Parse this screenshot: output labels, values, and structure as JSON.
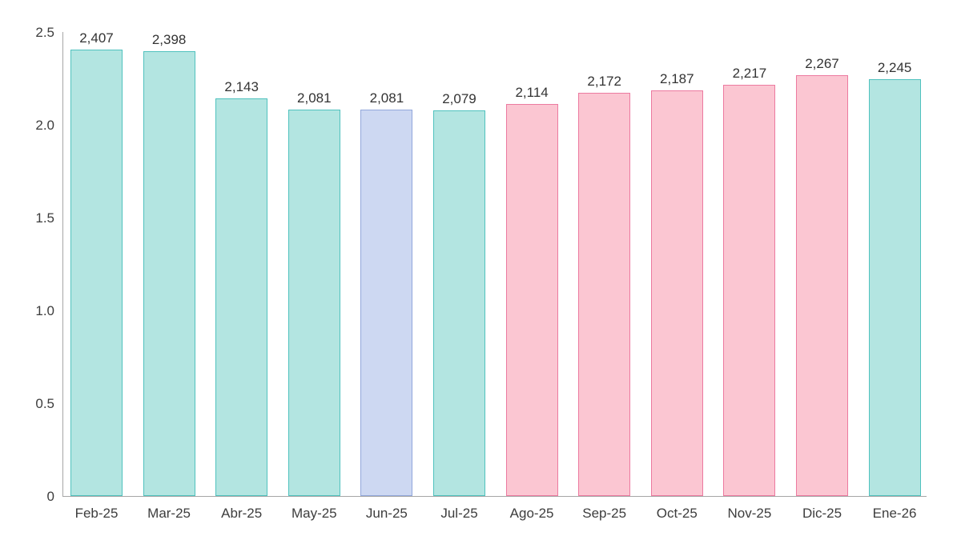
{
  "chart_data": {
    "type": "bar",
    "title": "",
    "xlabel": "",
    "ylabel": "",
    "categories": [
      "Feb-25",
      "Mar-25",
      "Abr-25",
      "May-25",
      "Jun-25",
      "Jul-25",
      "Ago-25",
      "Sep-25",
      "Oct-25",
      "Nov-25",
      "Dic-25",
      "Ene-26"
    ],
    "values": [
      2.407,
      2.398,
      2.143,
      2.081,
      2.081,
      2.079,
      2.114,
      2.172,
      2.187,
      2.217,
      2.267,
      2.245
    ],
    "data_labels": [
      "2,407",
      "2,398",
      "2,143",
      "2,081",
      "2,081",
      "2,079",
      "2,114",
      "2,172",
      "2,187",
      "2,217",
      "2,267",
      "2,245"
    ],
    "ylim": [
      0,
      2.5
    ],
    "yticks": [
      0,
      0.5,
      1.0,
      1.5,
      2.0,
      2.5
    ],
    "ytick_labels": [
      "0",
      "0.5",
      "1.0",
      "1.5",
      "2.0",
      "2.5"
    ],
    "grid": false,
    "legend": false,
    "bar_groups": [
      "teal",
      "teal",
      "teal",
      "teal",
      "blue",
      "teal",
      "pink",
      "pink",
      "pink",
      "pink",
      "pink",
      "teal"
    ],
    "group_colors": {
      "teal": {
        "fill": "#B3E5E1",
        "border": "#50C2BE"
      },
      "blue": {
        "fill": "#CDD8F2",
        "border": "#92A7DB"
      },
      "pink": {
        "fill": "#FBC6D2",
        "border": "#EC7AA0"
      }
    },
    "axis_line_color": "#a6a6a6"
  }
}
